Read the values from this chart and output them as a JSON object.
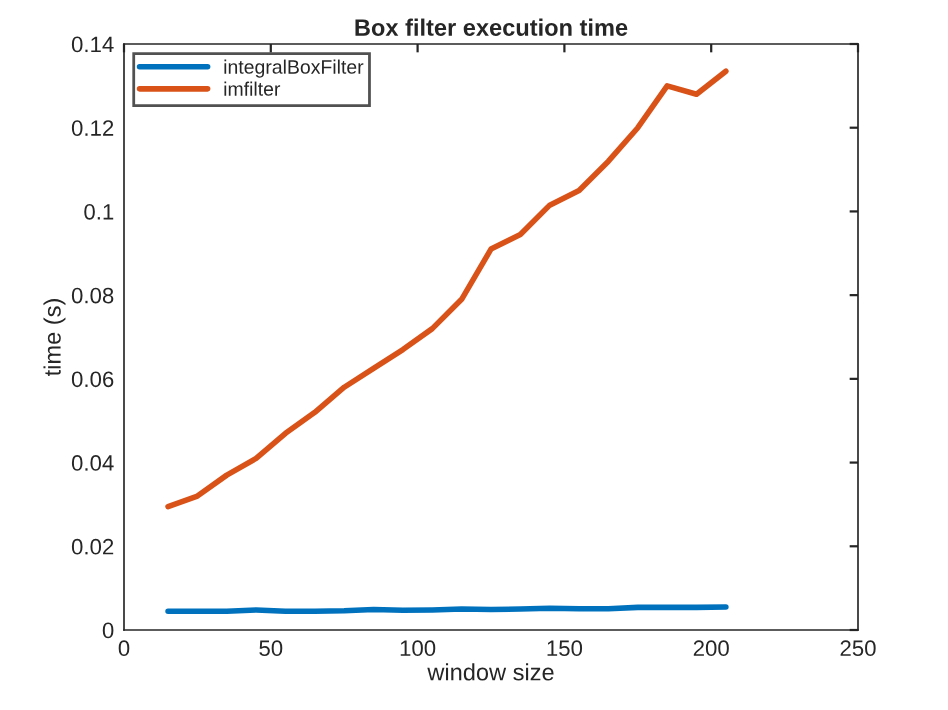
{
  "chart_data": {
    "type": "line",
    "title": "Box filter execution time",
    "xlabel": "window size",
    "ylabel": "time (s)",
    "x": [
      15,
      25,
      35,
      45,
      55,
      65,
      75,
      85,
      95,
      105,
      115,
      125,
      135,
      145,
      155,
      165,
      175,
      185,
      195,
      205
    ],
    "series": [
      {
        "name": "integralBoxFilter",
        "color": "#0072bd",
        "values": [
          0.0045,
          0.0045,
          0.0045,
          0.0048,
          0.0045,
          0.0045,
          0.0046,
          0.0049,
          0.0047,
          0.0048,
          0.005,
          0.0049,
          0.005,
          0.0052,
          0.0051,
          0.0051,
          0.0054,
          0.0054,
          0.0054,
          0.0055
        ]
      },
      {
        "name": "imfilter",
        "color": "#d95319",
        "values": [
          0.0295,
          0.032,
          0.037,
          0.041,
          0.047,
          0.052,
          0.058,
          0.0625,
          0.067,
          0.072,
          0.079,
          0.091,
          0.0945,
          0.1015,
          0.105,
          0.112,
          0.12,
          0.13,
          0.128,
          0.1335
        ]
      }
    ],
    "xlim": [
      0,
      250
    ],
    "xticks": [
      0,
      50,
      100,
      150,
      200,
      250
    ],
    "ylim": [
      0,
      0.14
    ],
    "yticks": [
      0,
      0.02,
      0.04,
      0.06,
      0.08,
      0.1,
      0.12,
      0.14
    ],
    "legend": "top left",
    "grid": false,
    "marker": "none",
    "line_style": "solid"
  }
}
